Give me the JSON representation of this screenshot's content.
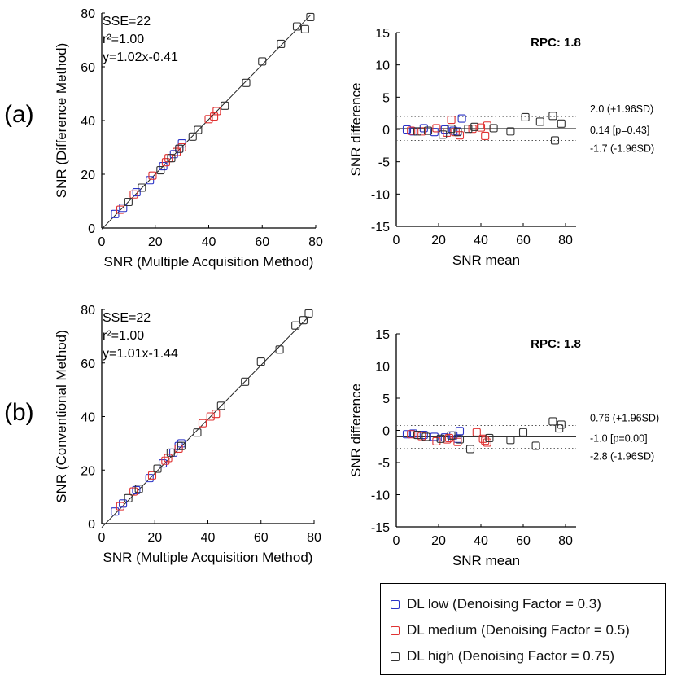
{
  "panel_labels": [
    "(a)",
    "(b)"
  ],
  "colors": {
    "low": "#2b33c7",
    "medium": "#e03232",
    "high": "#333333",
    "axis": "#000000",
    "dotted": "#555555"
  },
  "legend": [
    {
      "key": "low",
      "label": "DL low (Denoising Factor = 0.3)"
    },
    {
      "key": "medium",
      "label": "DL medium (Denoising Factor = 0.5)"
    },
    {
      "key": "high",
      "label": "DL high (Denoising Factor = 0.75)"
    }
  ],
  "chart_data": [
    {
      "id": "a-scatter",
      "type": "scatter",
      "xlabel": "SNR (Multiple Acquisition Method)",
      "ylabel": "SNR (Difference Method)",
      "xlim": [
        0,
        80
      ],
      "ylim": [
        0,
        80
      ],
      "xticks": [
        0,
        20,
        40,
        60,
        80
      ],
      "yticks": [
        0,
        20,
        40,
        60,
        80
      ],
      "annotations": [
        "SSE=22",
        "r²=1.00",
        "y=1.02x-0.41"
      ],
      "fit": {
        "slope": 1.02,
        "intercept": -0.41
      },
      "series": [
        {
          "name": "DL low",
          "key": "low",
          "points": [
            [
              5,
              5.2
            ],
            [
              8,
              7.5
            ],
            [
              13,
              13.3
            ],
            [
              18,
              17.8
            ],
            [
              23,
              23
            ],
            [
              27,
              27.5
            ],
            [
              29,
              29.5
            ],
            [
              30,
              31.5
            ]
          ]
        },
        {
          "name": "DL medium",
          "key": "medium",
          "points": [
            [
              7,
              6.8
            ],
            [
              12,
              12.5
            ],
            [
              19,
              19.5
            ],
            [
              24,
              24.5
            ],
            [
              25,
              26
            ],
            [
              28,
              28.3
            ],
            [
              30,
              30
            ],
            [
              40,
              40.5
            ],
            [
              42,
              41.5
            ],
            [
              43,
              43.5
            ]
          ]
        },
        {
          "name": "DL high",
          "key": "high",
          "points": [
            [
              10,
              9.7
            ],
            [
              15,
              15
            ],
            [
              22,
              21.5
            ],
            [
              26,
              26
            ],
            [
              29,
              29.5
            ],
            [
              34,
              34
            ],
            [
              36,
              36.5
            ],
            [
              46,
              45.5
            ],
            [
              54,
              54
            ],
            [
              60,
              62
            ],
            [
              67,
              68.5
            ],
            [
              73,
              75
            ],
            [
              76,
              74
            ],
            [
              78,
              78.5
            ]
          ]
        }
      ]
    },
    {
      "id": "a-ba",
      "type": "scatter",
      "title": "RPC: 1.8",
      "xlabel": "SNR mean",
      "ylabel": "SNR difference",
      "xlim": [
        0,
        85
      ],
      "ylim": [
        -15,
        15
      ],
      "xticks": [
        0,
        20,
        40,
        60,
        80
      ],
      "yticks": [
        -15,
        -10,
        -5,
        0,
        5,
        10,
        15
      ],
      "lines": [
        {
          "value": 2.0,
          "label": "2.0 (+1.96SD)",
          "style": "dotted"
        },
        {
          "value": 0.14,
          "label": "0.14 [p=0.43]",
          "style": "solid"
        },
        {
          "value": -1.7,
          "label": "-1.7 (-1.96SD)",
          "style": "dotted"
        }
      ],
      "series": [
        {
          "name": "DL low",
          "key": "low",
          "points": [
            [
              5,
              0
            ],
            [
              8,
              -0.3
            ],
            [
              13,
              0.2
            ],
            [
              18,
              -0.4
            ],
            [
              23,
              0
            ],
            [
              27,
              -0.2
            ],
            [
              29,
              -0.3
            ],
            [
              31,
              1.7
            ]
          ]
        },
        {
          "name": "DL medium",
          "key": "medium",
          "points": [
            [
              7,
              -0.2
            ],
            [
              12,
              -0.3
            ],
            [
              19,
              0.2
            ],
            [
              24,
              -0.5
            ],
            [
              26,
              1.5
            ],
            [
              28,
              -0.4
            ],
            [
              30,
              -0.9
            ],
            [
              36,
              0.1
            ],
            [
              40,
              0.3
            ],
            [
              42,
              -1.0
            ],
            [
              43,
              0.6
            ]
          ]
        },
        {
          "name": "DL high",
          "key": "high",
          "points": [
            [
              10,
              -0.3
            ],
            [
              15,
              -0.2
            ],
            [
              22,
              -0.8
            ],
            [
              26,
              0.1
            ],
            [
              29,
              -0.4
            ],
            [
              34,
              0.1
            ],
            [
              37,
              0.4
            ],
            [
              46,
              0.2
            ],
            [
              54,
              -0.3
            ],
            [
              61,
              1.9
            ],
            [
              68,
              1.2
            ],
            [
              74,
              2.1
            ],
            [
              75,
              -1.7
            ],
            [
              78,
              0.9
            ]
          ]
        }
      ]
    },
    {
      "id": "b-scatter",
      "type": "scatter",
      "xlabel": "SNR (Multiple Acquisition Method)",
      "ylabel": "SNR (Conventional Method)",
      "xlim": [
        0,
        80
      ],
      "ylim": [
        0,
        80
      ],
      "xticks": [
        0,
        20,
        40,
        60,
        80
      ],
      "yticks": [
        0,
        20,
        40,
        60,
        80
      ],
      "annotations": [
        "SSE=22",
        "r²=1.00",
        "y=1.01x-1.44"
      ],
      "fit": {
        "slope": 1.01,
        "intercept": -1.44
      },
      "series": [
        {
          "name": "DL low",
          "key": "low",
          "points": [
            [
              5,
              4.5
            ],
            [
              8,
              7.5
            ],
            [
              13,
              12.5
            ],
            [
              18,
              17
            ],
            [
              23,
              22.5
            ],
            [
              27,
              26.5
            ],
            [
              29,
              29
            ],
            [
              30,
              30
            ]
          ]
        },
        {
          "name": "DL medium",
          "key": "medium",
          "points": [
            [
              7,
              6.5
            ],
            [
              12,
              12
            ],
            [
              19,
              18
            ],
            [
              24,
              23.5
            ],
            [
              25,
              24.5
            ],
            [
              29,
              28
            ],
            [
              38,
              37.5
            ],
            [
              41,
              40
            ],
            [
              43,
              41
            ]
          ]
        },
        {
          "name": "DL high",
          "key": "high",
          "points": [
            [
              10,
              9.5
            ],
            [
              14,
              13
            ],
            [
              21,
              20.5
            ],
            [
              26,
              26.5
            ],
            [
              30,
              29
            ],
            [
              36,
              34
            ],
            [
              45,
              44
            ],
            [
              54,
              53
            ],
            [
              60,
              60.5
            ],
            [
              67,
              65
            ],
            [
              73,
              74
            ],
            [
              76,
              76
            ],
            [
              78,
              78.5
            ]
          ]
        }
      ]
    },
    {
      "id": "b-ba",
      "type": "scatter",
      "title": "RPC: 1.8",
      "xlabel": "SNR mean",
      "ylabel": "SNR difference",
      "xlim": [
        0,
        85
      ],
      "ylim": [
        -15,
        15
      ],
      "xticks": [
        0,
        20,
        40,
        60,
        80
      ],
      "yticks": [
        -15,
        -10,
        -5,
        0,
        5,
        10,
        15
      ],
      "lines": [
        {
          "value": 0.76,
          "label": "0.76 (+1.96SD)",
          "style": "dotted"
        },
        {
          "value": -1.0,
          "label": "-1.0 [p=0.00]",
          "style": "solid"
        },
        {
          "value": -2.8,
          "label": "-2.8 (-1.96SD)",
          "style": "dotted"
        }
      ],
      "series": [
        {
          "name": "DL low",
          "key": "low",
          "points": [
            [
              5,
              -0.6
            ],
            [
              8,
              -0.5
            ],
            [
              13,
              -0.7
            ],
            [
              18,
              -1.0
            ],
            [
              23,
              -1.1
            ],
            [
              27,
              -0.8
            ],
            [
              29,
              -1.3
            ],
            [
              30,
              -0.1
            ]
          ]
        },
        {
          "name": "DL medium",
          "key": "medium",
          "points": [
            [
              7,
              -0.6
            ],
            [
              12,
              -0.9
            ],
            [
              19,
              -1.7
            ],
            [
              24,
              -1.4
            ],
            [
              25,
              -1.2
            ],
            [
              29,
              -1.8
            ],
            [
              38,
              -0.3
            ],
            [
              41,
              -1.3
            ],
            [
              42,
              -1.6
            ],
            [
              43,
              -1.9
            ]
          ]
        },
        {
          "name": "DL high",
          "key": "high",
          "points": [
            [
              10,
              -0.7
            ],
            [
              14,
              -1.0
            ],
            [
              21,
              -1.3
            ],
            [
              26,
              -0.8
            ],
            [
              30,
              -1.4
            ],
            [
              35,
              -2.9
            ],
            [
              44,
              -1.2
            ],
            [
              54,
              -1.5
            ],
            [
              60,
              -0.3
            ],
            [
              66,
              -2.4
            ],
            [
              74,
              1.4
            ],
            [
              77,
              0.3
            ],
            [
              78,
              0.9
            ]
          ]
        }
      ]
    }
  ]
}
